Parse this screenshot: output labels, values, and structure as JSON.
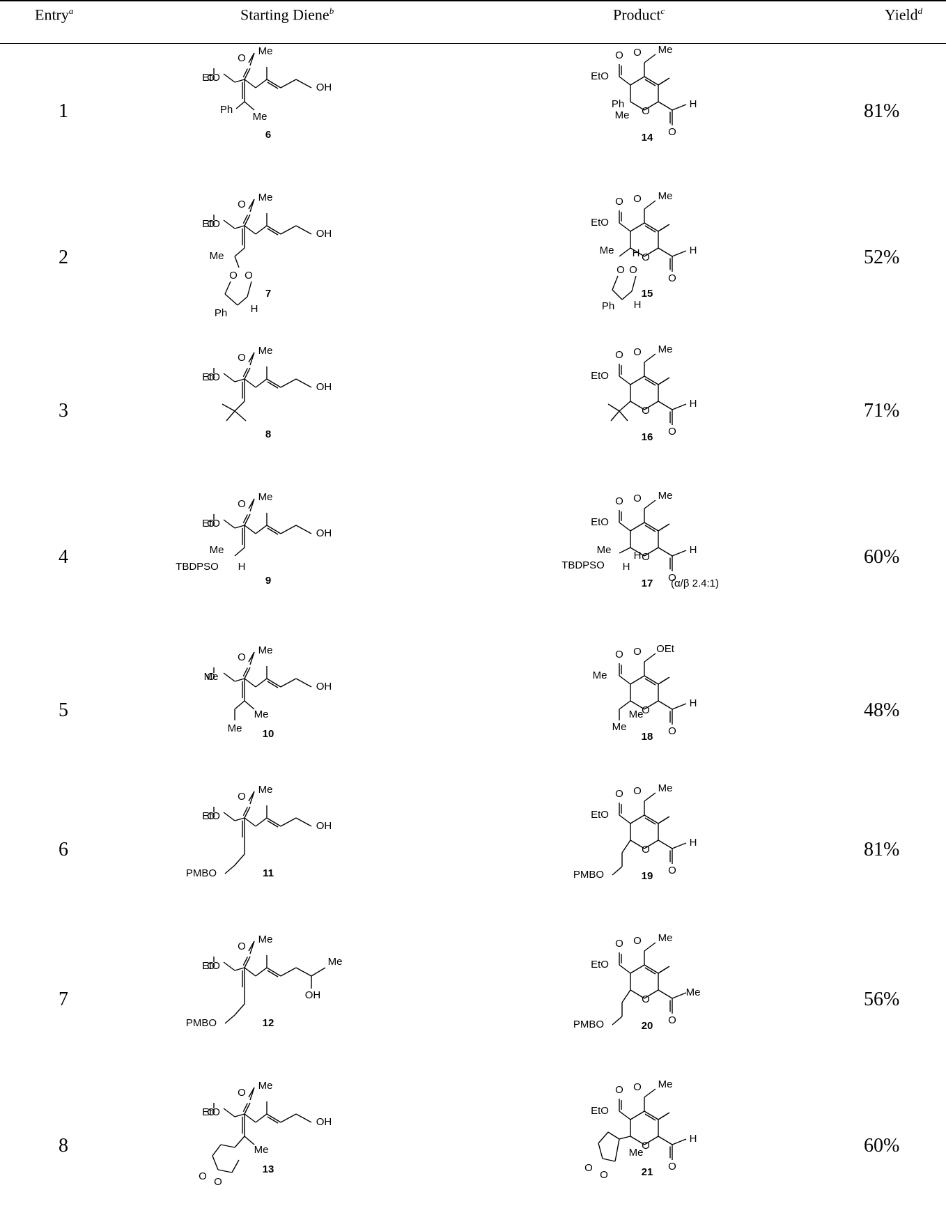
{
  "table": {
    "headers": {
      "entry": "Entry",
      "entry_note": "a",
      "diene": "Starting Diene",
      "diene_note": "b",
      "product": "Product",
      "product_note": "c",
      "yield": "Yield",
      "yield_note": "d"
    },
    "rows": [
      {
        "entry": "1",
        "diene": "6",
        "product": "14",
        "yield": "81%"
      },
      {
        "entry": "2",
        "diene": "7",
        "product": "15",
        "yield": "52%"
      },
      {
        "entry": "3",
        "diene": "8",
        "product": "16",
        "yield": "71%"
      },
      {
        "entry": "4",
        "diene": "9",
        "product": "17",
        "product_note": "(α/β 2.4:1)",
        "yield": "60%"
      },
      {
        "entry": "5",
        "diene": "10",
        "product": "18",
        "yield": "48%"
      },
      {
        "entry": "6",
        "diene": "11",
        "product": "19",
        "yield": "81%"
      },
      {
        "entry": "7",
        "diene": "12",
        "product": "20",
        "yield": "56%"
      },
      {
        "entry": "8",
        "diene": "13",
        "product": "21",
        "yield": "60%"
      }
    ]
  },
  "labels": {
    "me": "Me",
    "oh": "OH",
    "o": "O",
    "eto": "EtO",
    "oet": "OEt",
    "ph": "Ph",
    "h": "H",
    "pmbo": "PMBO",
    "tbdpso": "TBDPSO"
  }
}
